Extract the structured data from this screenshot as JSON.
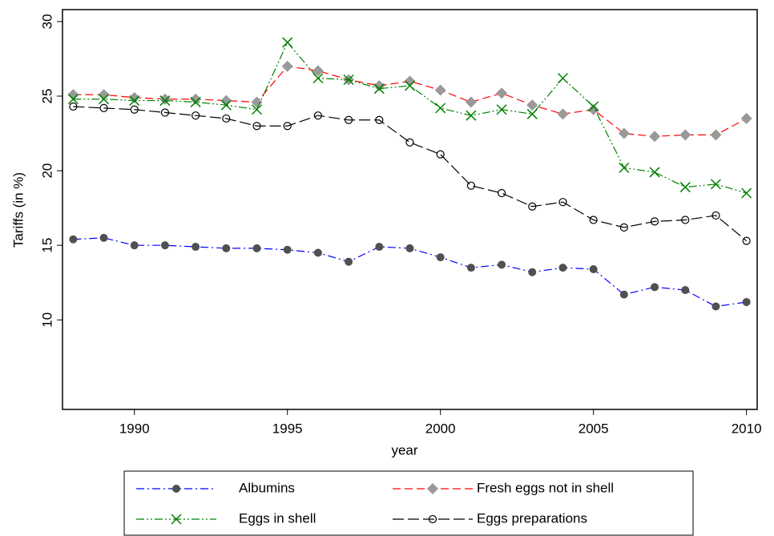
{
  "chart_data": {
    "type": "line",
    "x_label": "year",
    "y_label": "Tariffs (in %)",
    "x": [
      1988,
      1989,
      1990,
      1991,
      1992,
      1993,
      1994,
      1995,
      1996,
      1997,
      1998,
      1999,
      2000,
      2001,
      2002,
      2003,
      2004,
      2005,
      2006,
      2007,
      2008,
      2009,
      2010
    ],
    "xlim": [
      1987.65,
      2010.35
    ],
    "xticks": [
      1990,
      1995,
      2000,
      2005,
      2010
    ],
    "ylim": [
      4,
      30.8
    ],
    "yticks": [
      10,
      15,
      20,
      25,
      30
    ],
    "legend": "bottom",
    "series": [
      {
        "name": "Albumins",
        "color": "#0000ff",
        "marker_color": "#505050",
        "values": [
          15.4,
          15.5,
          15.0,
          15.0,
          14.9,
          14.8,
          14.8,
          14.7,
          14.5,
          13.9,
          14.9,
          14.8,
          14.2,
          13.5,
          13.7,
          13.2,
          13.5,
          13.4,
          11.7,
          12.2,
          12.0,
          10.9,
          11.2
        ]
      },
      {
        "name": "Fresh eggs not in shell",
        "color": "#ff0000",
        "marker_color": "#999999",
        "values": [
          25.1,
          25.1,
          24.9,
          24.8,
          24.8,
          24.7,
          24.6,
          27.0,
          26.7,
          26.1,
          25.7,
          26.0,
          25.4,
          24.6,
          25.2,
          24.4,
          23.8,
          24.1,
          22.5,
          22.3,
          22.4,
          22.4,
          23.5
        ]
      },
      {
        "name": "Eggs in shell",
        "color": "#008000",
        "marker_color": "#008000",
        "values": [
          24.8,
          24.8,
          24.7,
          24.7,
          24.6,
          24.4,
          24.1,
          28.6,
          26.2,
          26.1,
          25.5,
          25.7,
          24.2,
          23.7,
          24.1,
          23.8,
          26.2,
          24.3,
          20.2,
          19.9,
          18.9,
          19.1,
          18.5
        ]
      },
      {
        "name": "Eggs preparations",
        "color": "#000000",
        "marker_color": "#000000",
        "values": [
          24.3,
          24.2,
          24.1,
          23.9,
          23.7,
          23.5,
          23.0,
          23.0,
          23.7,
          23.4,
          23.4,
          21.9,
          21.1,
          19.0,
          18.5,
          17.6,
          17.9,
          16.7,
          16.2,
          16.6,
          16.7,
          17.0,
          15.3
        ]
      }
    ]
  }
}
